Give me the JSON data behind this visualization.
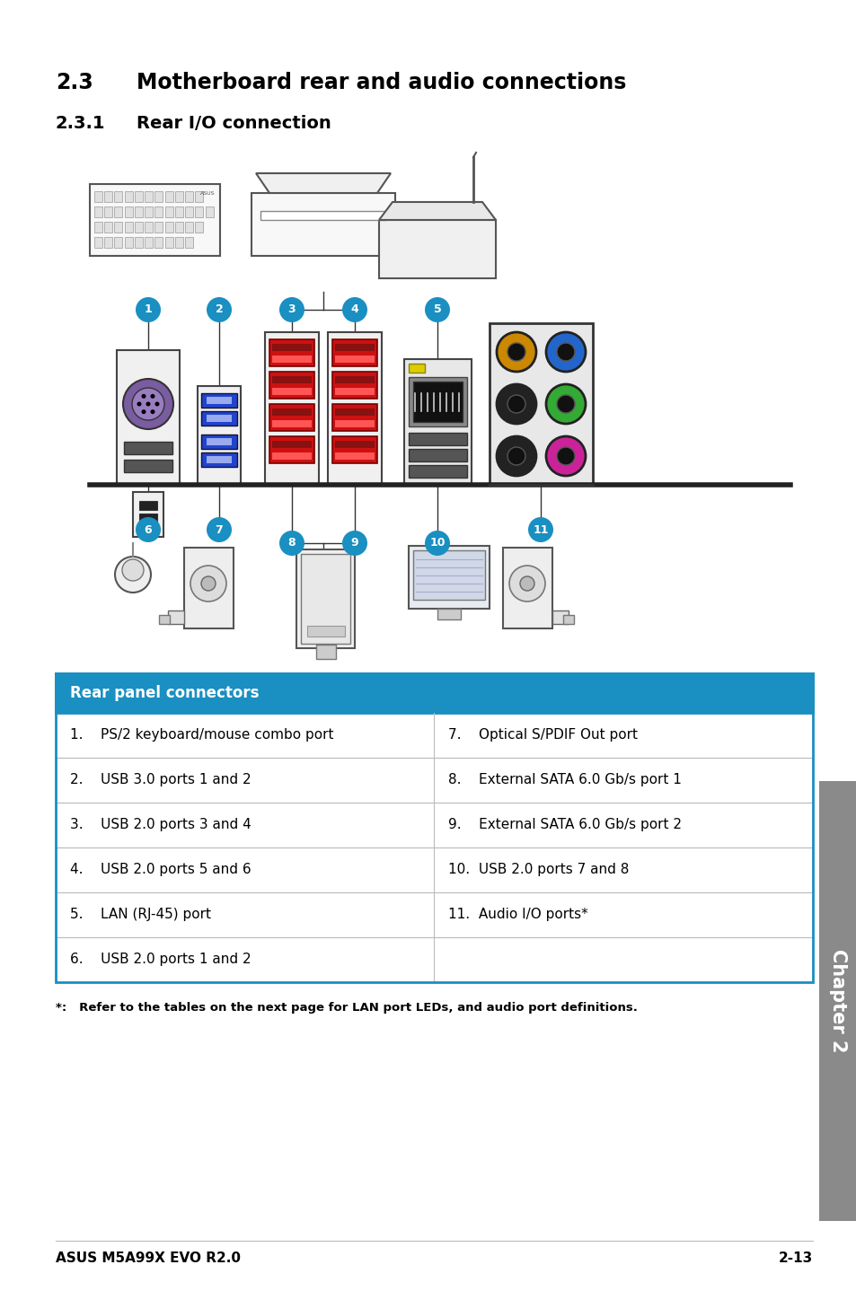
{
  "title_section": "2.3",
  "title_text": "Motherboard rear and audio connections",
  "subtitle_section": "2.3.1",
  "subtitle_text": "Rear I/O connection",
  "table_header": "Rear panel connectors",
  "table_header_bg": "#1a8fc1",
  "table_header_color": "#ffffff",
  "table_border_color": "#1a8fc1",
  "table_divider_color": "#bbbbbb",
  "left_column": [
    "1.    PS/2 keyboard/mouse combo port",
    "2.    USB 3.0 ports 1 and 2",
    "3.    USB 2.0 ports 3 and 4",
    "4.    USB 2.0 ports 5 and 6",
    "5.    LAN (RJ-45) port",
    "6.    USB 2.0 ports 1 and 2"
  ],
  "right_column": [
    "7.    Optical S/PDIF Out port",
    "8.    External SATA 6.0 Gb/s port 1",
    "9.    External SATA 6.0 Gb/s port 2",
    "10.  USB 2.0 ports 7 and 8",
    "11.  Audio I/O ports*",
    ""
  ],
  "footnote": "*:   Refer to the tables on the next page for LAN port LEDs, and audio port definitions.",
  "footer_left": "ASUS M5A99X EVO R2.0",
  "footer_right": "2-13",
  "chapter_label": "Chapter 2",
  "chapter_bg": "#8a8a8a",
  "background_color": "#ffffff",
  "circle_color": "#1a8fc1",
  "circle_text_color": "#ffffff"
}
